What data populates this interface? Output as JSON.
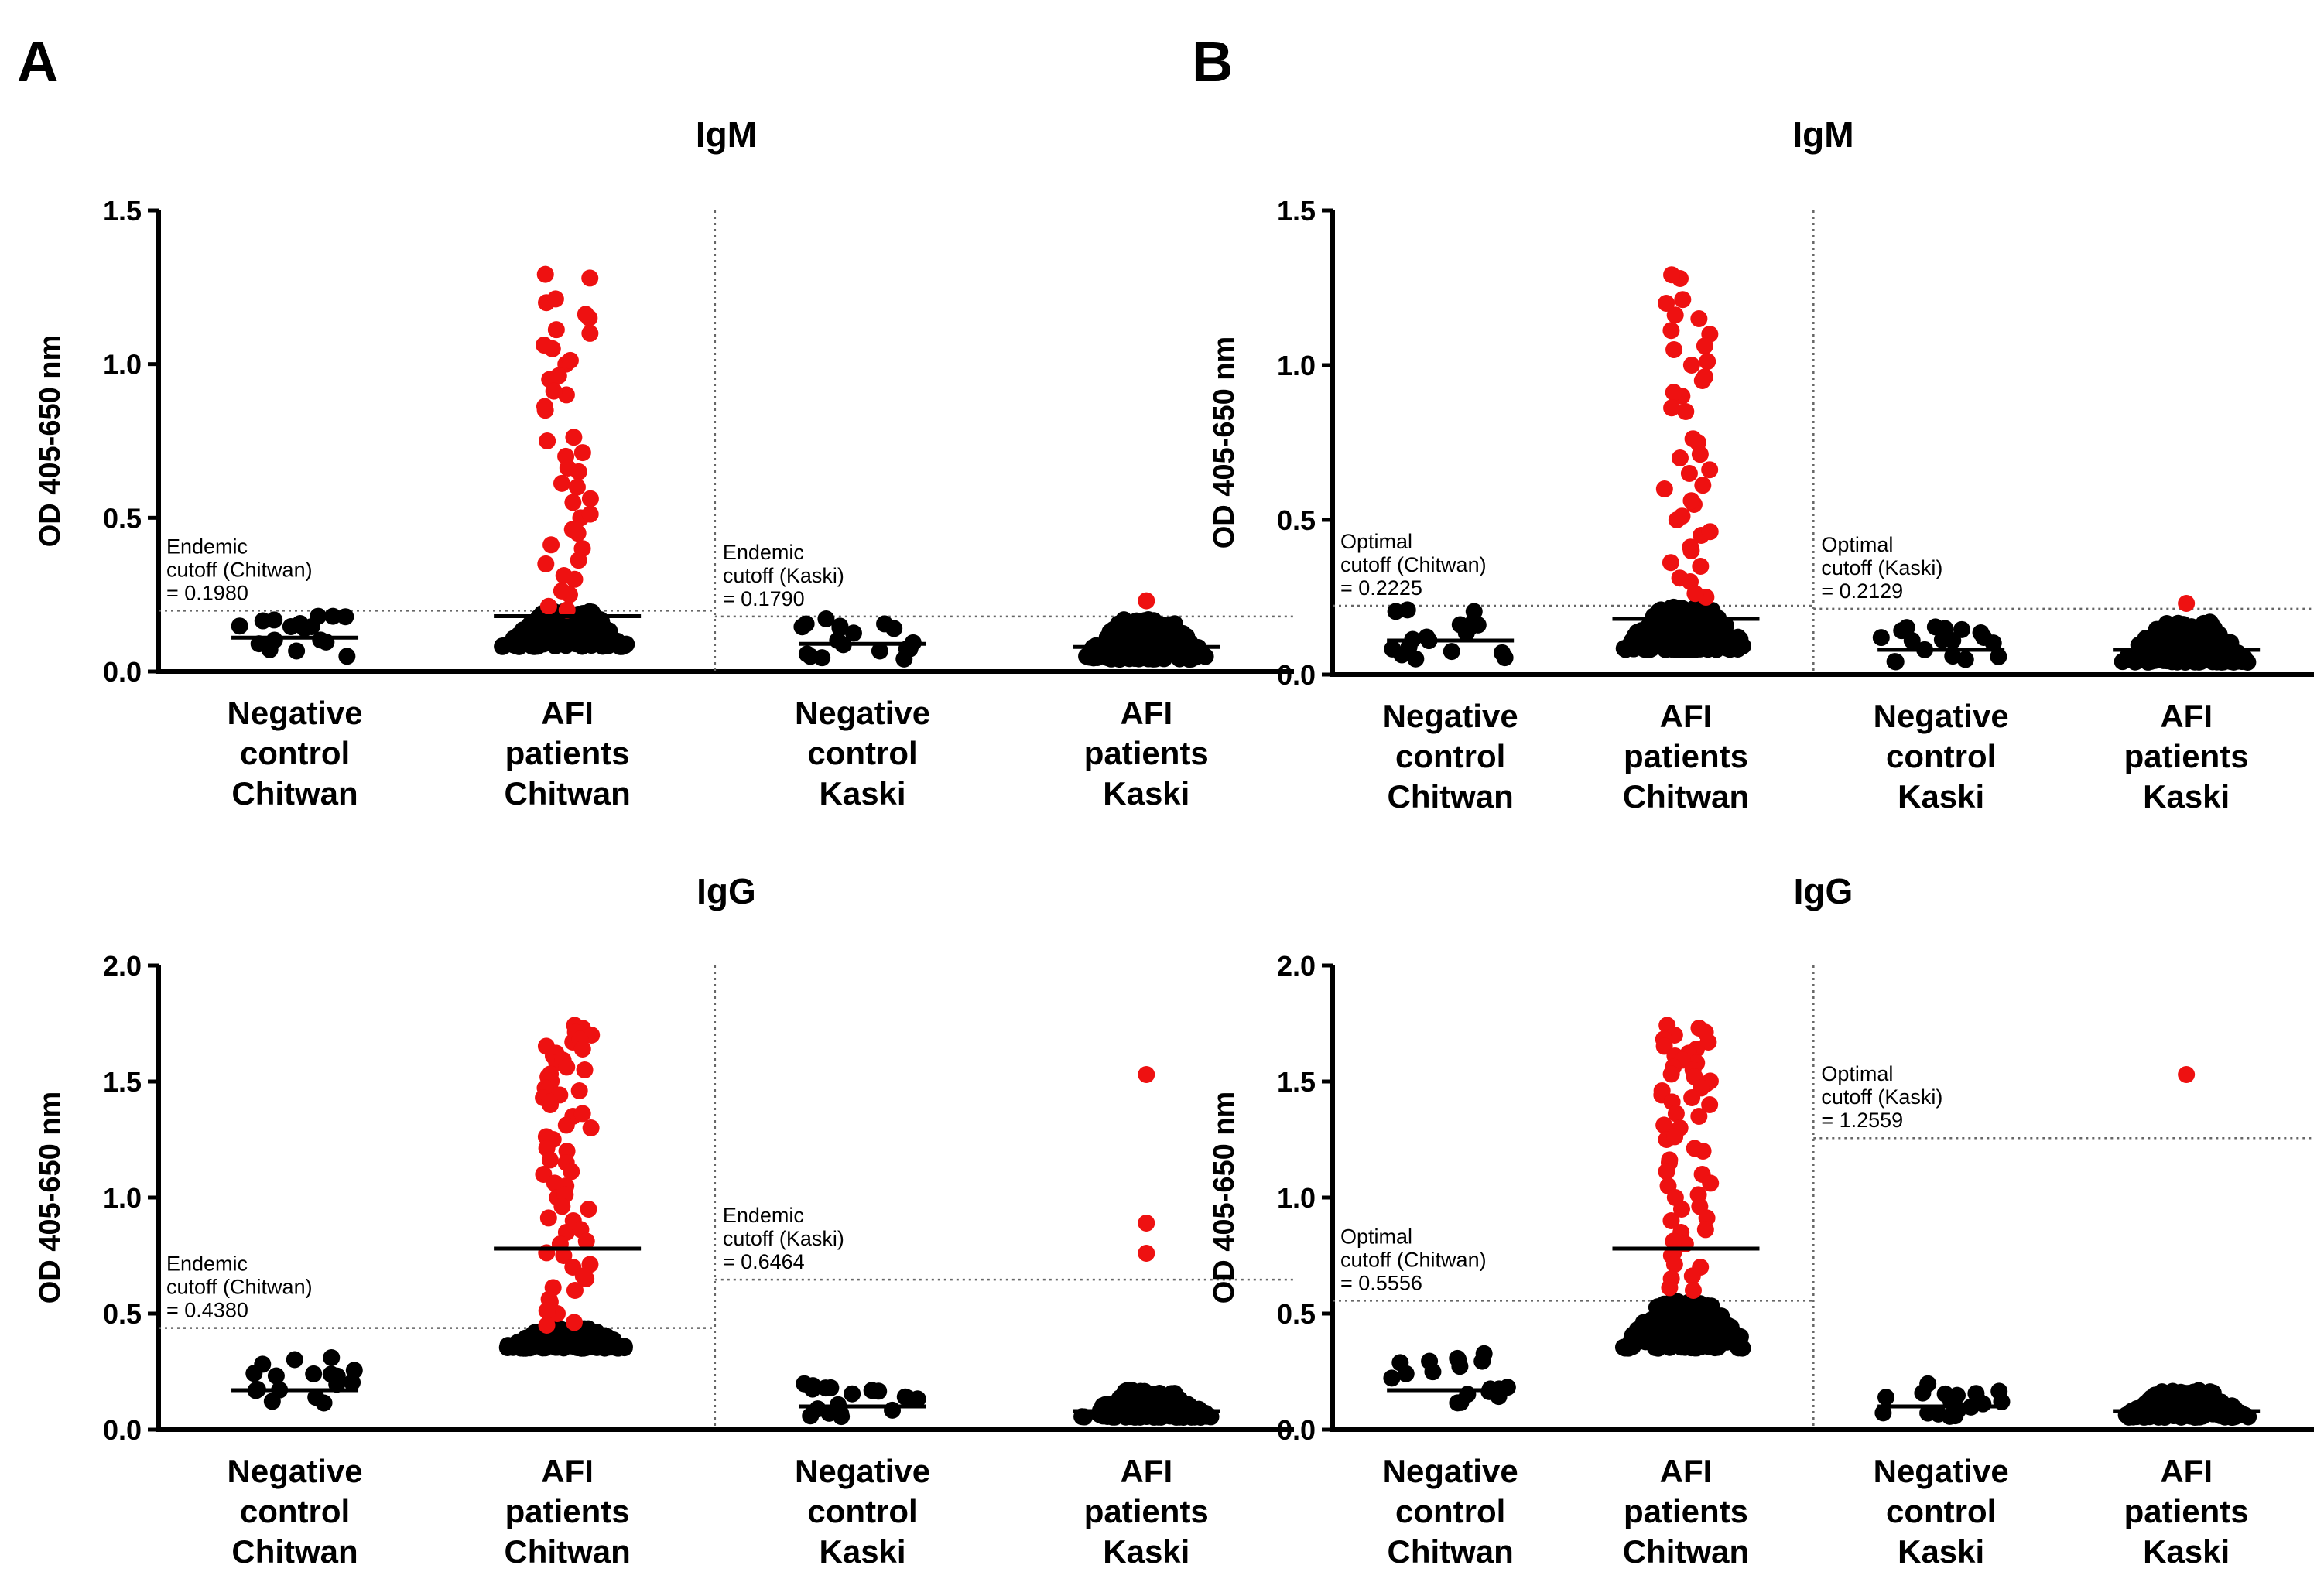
{
  "panel_labels": [
    "A",
    "B"
  ],
  "colors": {
    "positive": "#ee1111",
    "negative": "#000000",
    "axis": "#000000",
    "cutoff_line": "#666666"
  },
  "chart_data": [
    {
      "type": "scatter",
      "panel": "A",
      "title": "IgM",
      "ylabel": "OD 405-650 nm",
      "ylim": [
        0,
        1.5
      ],
      "yticks": [
        "0.0",
        "0.5",
        "1.0",
        "1.5"
      ],
      "groups": [
        {
          "lines": [
            "Negative",
            "control",
            "Chitwan"
          ],
          "region": "Chitwan",
          "median": 0.11,
          "positive_values": []
        },
        {
          "lines": [
            "AFI",
            "patients",
            "Chitwan"
          ],
          "region": "Chitwan",
          "median": 0.18,
          "positive_values": [
            1.28,
            1.2,
            1.15,
            1.1,
            1.05,
            1.0,
            0.95,
            0.9,
            0.85,
            0.75,
            0.7,
            0.65,
            0.6,
            0.55,
            0.5,
            0.45,
            0.4,
            0.35,
            0.3,
            0.25,
            0.2
          ]
        },
        {
          "lines": [
            "Negative",
            "control",
            "Kaski"
          ],
          "region": "Kaski",
          "median": 0.09,
          "positive_values": []
        },
        {
          "lines": [
            "AFI",
            "patients",
            "Kaski"
          ],
          "region": "Kaski",
          "median": 0.08,
          "positive_values": [
            0.23
          ]
        }
      ],
      "cutoffs": [
        {
          "lines": [
            "Endemic",
            "cutoff (Chitwan)",
            "= 0.1980"
          ],
          "value": 0.198,
          "region": "Chitwan"
        },
        {
          "lines": [
            "Endemic",
            "cutoff (Kaski)",
            "= 0.1790"
          ],
          "value": 0.179,
          "region": "Kaski"
        }
      ]
    },
    {
      "type": "scatter",
      "panel": "B",
      "title": "IgM",
      "ylabel": "OD 405-650 nm",
      "ylim": [
        0,
        1.5
      ],
      "yticks": [
        "0.0",
        "0.5",
        "1.0",
        "1.5"
      ],
      "groups": [
        {
          "lines": [
            "Negative",
            "control",
            "Chitwan"
          ],
          "region": "Chitwan",
          "median": 0.11,
          "positive_values": []
        },
        {
          "lines": [
            "AFI",
            "patients",
            "Chitwan"
          ],
          "region": "Chitwan",
          "median": 0.18,
          "positive_values": [
            1.28,
            1.2,
            1.15,
            1.1,
            1.05,
            1.0,
            0.95,
            0.9,
            0.85,
            0.75,
            0.7,
            0.65,
            0.6,
            0.55,
            0.5,
            0.45,
            0.4,
            0.35,
            0.3,
            0.25
          ]
        },
        {
          "lines": [
            "Negative",
            "control",
            "Kaski"
          ],
          "region": "Kaski",
          "median": 0.08,
          "positive_values": []
        },
        {
          "lines": [
            "AFI",
            "patients",
            "Kaski"
          ],
          "region": "Kaski",
          "median": 0.08,
          "positive_values": [
            0.23
          ]
        }
      ],
      "cutoffs": [
        {
          "lines": [
            "Optimal",
            "cutoff (Chitwan)",
            "= 0.2225"
          ],
          "value": 0.2225,
          "region": "Chitwan"
        },
        {
          "lines": [
            "Optimal",
            "cutoff (Kaski)",
            "= 0.2129"
          ],
          "value": 0.2129,
          "region": "Kaski"
        }
      ]
    },
    {
      "type": "scatter",
      "panel": "A",
      "title": "IgG",
      "ylabel": "OD 405-650 nm",
      "ylim": [
        0,
        2.0
      ],
      "yticks": [
        "0.0",
        "0.5",
        "1.0",
        "1.5",
        "2.0"
      ],
      "groups": [
        {
          "lines": [
            "Negative",
            "control",
            "Chitwan"
          ],
          "region": "Chitwan",
          "median": 0.17,
          "positive_values": []
        },
        {
          "lines": [
            "AFI",
            "patients",
            "Chitwan"
          ],
          "region": "Chitwan",
          "median": 0.78,
          "positive_values": [
            1.73,
            1.7,
            1.67,
            1.64,
            1.61,
            1.58,
            1.55,
            1.52,
            1.49,
            1.46,
            1.43,
            1.4,
            1.35,
            1.3,
            1.25,
            1.2,
            1.15,
            1.1,
            1.05,
            1.0,
            0.95,
            0.9,
            0.85,
            0.8,
            0.75,
            0.7,
            0.65,
            0.6,
            0.55,
            0.5,
            0.45
          ]
        },
        {
          "lines": [
            "Negative",
            "control",
            "Kaski"
          ],
          "region": "Kaski",
          "median": 0.1,
          "positive_values": []
        },
        {
          "lines": [
            "AFI",
            "patients",
            "Kaski"
          ],
          "region": "Kaski",
          "median": 0.08,
          "positive_values": [
            1.53,
            0.89,
            0.76
          ]
        }
      ],
      "cutoffs": [
        {
          "lines": [
            "Endemic",
            "cutoff (Chitwan)",
            "= 0.4380"
          ],
          "value": 0.438,
          "region": "Chitwan"
        },
        {
          "lines": [
            "Endemic",
            "cutoff (Kaski)",
            "= 0.6464"
          ],
          "value": 0.6464,
          "region": "Kaski"
        }
      ]
    },
    {
      "type": "scatter",
      "panel": "B",
      "title": "IgG",
      "ylabel": "OD 405-650 nm",
      "ylim": [
        0,
        2.0
      ],
      "yticks": [
        "0.0",
        "0.5",
        "1.0",
        "1.5",
        "2.0"
      ],
      "groups": [
        {
          "lines": [
            "Negative",
            "control",
            "Chitwan"
          ],
          "region": "Chitwan",
          "median": 0.17,
          "positive_values": []
        },
        {
          "lines": [
            "AFI",
            "patients",
            "Chitwan"
          ],
          "region": "Chitwan",
          "median": 0.78,
          "positive_values": [
            1.73,
            1.7,
            1.67,
            1.64,
            1.61,
            1.58,
            1.55,
            1.52,
            1.49,
            1.46,
            1.43,
            1.4,
            1.35,
            1.3,
            1.25,
            1.2,
            1.15,
            1.1,
            1.05,
            1.0,
            0.95,
            0.9,
            0.85,
            0.8,
            0.75,
            0.7,
            0.65,
            0.6
          ]
        },
        {
          "lines": [
            "Negative",
            "control",
            "Kaski"
          ],
          "region": "Kaski",
          "median": 0.1,
          "positive_values": []
        },
        {
          "lines": [
            "AFI",
            "patients",
            "Kaski"
          ],
          "region": "Kaski",
          "median": 0.08,
          "positive_values": [
            1.53
          ]
        }
      ],
      "cutoffs": [
        {
          "lines": [
            "Optimal",
            "cutoff (Chitwan)",
            "= 0.5556"
          ],
          "value": 0.5556,
          "region": "Chitwan"
        },
        {
          "lines": [
            "Optimal",
            "cutoff (Kaski)",
            "= 1.2559"
          ],
          "value": 1.2559,
          "region": "Kaski"
        }
      ]
    }
  ]
}
